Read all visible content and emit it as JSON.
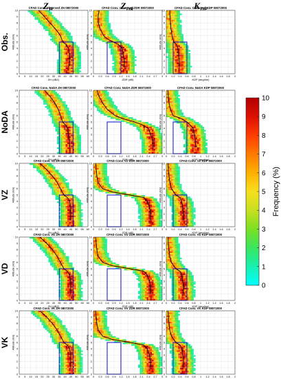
{
  "chart_data": {
    "type": "heatmap",
    "column_headers": [
      {
        "symbol": "Z",
        "subscript": "H"
      },
      {
        "symbol": "Z",
        "subscript": "DR"
      },
      {
        "symbol": "K",
        "subscript": "DP"
      }
    ],
    "row_labels": [
      "Obs.",
      "NoDA",
      "VZ",
      "VD",
      "VK"
    ],
    "panel_titles": [
      [
        "CFAD Conv. Observed ZH 08072000",
        "CFAD Conv. Observed ZDR 08072000",
        "CFAD Conv. Observed KDP 08072000"
      ],
      [
        "CFAD Conv. NoDA ZH 08072000",
        "CFAD Conv. NoDA ZDR 08072000",
        "CFAD Conv. NoDA KDP 08072000"
      ],
      [
        "CFAD Conv. VZ ZH 08072000",
        "CFAD Conv. VZ ZDR 08072000",
        "CFAD Conv. VZ KDP 08072000"
      ],
      [
        "CFAD Conv. VD ZH 08072000",
        "CFAD Conv. VD ZDR 08072000",
        "CFAD Conv. VD KDP 08072000"
      ],
      [
        "CFAD Conv. VK ZH 08072000",
        "CFAD Conv. VK ZDR 08072000",
        "CFAD Conv. VK KDP 08072000"
      ]
    ],
    "axes": {
      "ylabel": "Altitude (km)",
      "ylim": [
        0,
        10
      ],
      "yticks": [
        0,
        1,
        2,
        3,
        4,
        5,
        6,
        7,
        8,
        9,
        10
      ],
      "x": [
        {
          "xlabel": "ZH (dBZ)",
          "xlim": [
            0,
            60
          ],
          "xticks": [
            0,
            5,
            10,
            15,
            20,
            25,
            30,
            35,
            40,
            45,
            50,
            55,
            60
          ]
        },
        {
          "xlabel": "ZDR (dB)",
          "xlim": [
            0,
            3
          ],
          "xticks": [
            0,
            0.3,
            0.6,
            0.9,
            1.2,
            1.5,
            1.8,
            2.1,
            2.4,
            2.7,
            3
          ]
        },
        {
          "xlabel": "KDP (deg/km)",
          "xlim": [
            0,
            2
          ],
          "xticks": [
            0,
            0.2,
            0.4,
            0.6,
            0.8,
            1,
            1.2,
            1.4,
            1.6,
            1.8,
            2
          ]
        }
      ]
    },
    "boxes": [
      {
        "x": [
          35,
          47
        ],
        "y": [
          0,
          5
        ]
      },
      {
        "x": [
          0.6,
          1.2
        ],
        "y": [
          0,
          5
        ]
      },
      {
        "x": [
          0.2,
          0.6
        ],
        "y": [
          0,
          5
        ]
      }
    ],
    "mean_profiles": [
      [
        {
          "alt": [
            10,
            9,
            8,
            7,
            6,
            5,
            4.6,
            4,
            3,
            2,
            1
          ],
          "val": [
            17,
            22,
            27,
            32,
            36,
            38,
            41,
            43,
            44,
            44,
            43
          ]
        },
        {
          "alt": [
            10,
            9,
            8,
            7,
            6,
            5.5,
            4.6,
            4,
            3,
            2,
            1
          ],
          "val": [
            0.25,
            0.2,
            0.22,
            0.3,
            0.45,
            0.6,
            1.1,
            1.25,
            1.3,
            1.35,
            1.35
          ]
        },
        {
          "alt": [
            10,
            9,
            8,
            7,
            6,
            5,
            4.6,
            4,
            3,
            2,
            1
          ],
          "val": [
            0.1,
            0.11,
            0.12,
            0.14,
            0.17,
            0.22,
            0.3,
            0.34,
            0.36,
            0.38,
            0.38
          ]
        }
      ],
      [
        {
          "alt": [
            10,
            9,
            8,
            7,
            6,
            5,
            4.6,
            4,
            3,
            2,
            1
          ],
          "val": [
            22,
            27,
            31,
            34,
            36,
            38,
            40,
            42,
            43,
            44,
            44
          ]
        },
        {
          "alt": [
            10,
            9,
            8,
            7,
            6,
            5.5,
            5,
            4.6,
            4,
            3,
            2,
            1
          ],
          "val": [
            0.15,
            0.25,
            0.4,
            0.6,
            0.95,
            1.3,
            1.8,
            2.1,
            2.4,
            2.5,
            2.6,
            2.6
          ]
        },
        {
          "alt": [
            10,
            9,
            8,
            7,
            6,
            5.5,
            5,
            4.5,
            4,
            3,
            2,
            1
          ],
          "val": [
            0.05,
            0.06,
            0.08,
            0.12,
            0.2,
            0.45,
            0.6,
            0.7,
            0.78,
            0.82,
            0.85,
            0.85
          ]
        }
      ],
      [
        {
          "alt": [
            10,
            9,
            8,
            7,
            6,
            5,
            4.6,
            4,
            3,
            2,
            1
          ],
          "val": [
            18,
            24,
            29,
            33,
            36,
            39,
            42,
            44,
            45,
            45,
            45
          ]
        },
        {
          "alt": [
            10,
            9,
            8,
            7,
            6,
            5.5,
            5,
            4.6,
            4,
            3,
            2,
            1
          ],
          "val": [
            0.1,
            0.12,
            0.15,
            0.2,
            0.4,
            0.8,
            1.6,
            2.2,
            2.35,
            2.45,
            2.5,
            2.5
          ]
        },
        {
          "alt": [
            10,
            9,
            8,
            7,
            6,
            5,
            4.6,
            4,
            3,
            2,
            1
          ],
          "val": [
            0.05,
            0.06,
            0.08,
            0.1,
            0.15,
            0.28,
            0.4,
            0.45,
            0.48,
            0.5,
            0.5
          ]
        }
      ],
      [
        {
          "alt": [
            10,
            9,
            8,
            7,
            6,
            5,
            4.6,
            4,
            3,
            2,
            1
          ],
          "val": [
            18,
            24,
            29,
            33,
            36,
            39,
            42,
            44,
            45,
            45,
            45
          ]
        },
        {
          "alt": [
            10,
            9,
            8,
            7,
            6,
            5.5,
            5,
            4.6,
            4,
            3,
            2,
            1
          ],
          "val": [
            0.1,
            0.12,
            0.15,
            0.2,
            0.4,
            0.8,
            1.6,
            2.2,
            2.35,
            2.45,
            2.5,
            2.5
          ]
        },
        {
          "alt": [
            10,
            9,
            8,
            7,
            6,
            5,
            4.6,
            4,
            3,
            2,
            1
          ],
          "val": [
            0.05,
            0.06,
            0.08,
            0.1,
            0.15,
            0.28,
            0.4,
            0.45,
            0.48,
            0.5,
            0.5
          ]
        }
      ],
      [
        {
          "alt": [
            10,
            9,
            8,
            7,
            6,
            5,
            4.6,
            4,
            3,
            2,
            1
          ],
          "val": [
            18,
            24,
            29,
            33,
            36,
            39,
            42,
            44,
            45,
            45,
            45
          ]
        },
        {
          "alt": [
            10,
            9,
            8,
            7,
            6,
            5.5,
            5,
            4.6,
            4,
            3,
            2,
            1
          ],
          "val": [
            0.1,
            0.12,
            0.15,
            0.2,
            0.4,
            0.8,
            1.6,
            2.2,
            2.35,
            2.45,
            2.5,
            2.5
          ]
        },
        {
          "alt": [
            10,
            9,
            8,
            7,
            6,
            5,
            4.6,
            4,
            3,
            2,
            1
          ],
          "val": [
            0.05,
            0.06,
            0.08,
            0.1,
            0.15,
            0.28,
            0.4,
            0.45,
            0.48,
            0.5,
            0.5
          ]
        }
      ]
    ],
    "colorbar": {
      "label": "Frequency (%)",
      "min": 0,
      "max": 10,
      "ticks": [
        0,
        1,
        2,
        3,
        4,
        5,
        6,
        7,
        8,
        9,
        10
      ],
      "colormap": [
        "#00ffff",
        "#18f0b0",
        "#39e65f",
        "#7ce022",
        "#c6e020",
        "#f7df1d",
        "#ffb000",
        "#ff7a00",
        "#ff3d00",
        "#dd1000",
        "#b30000"
      ]
    },
    "colors": {
      "mean_line": "#000000",
      "box": "#1f1fd0",
      "row_label": "#000000"
    }
  }
}
